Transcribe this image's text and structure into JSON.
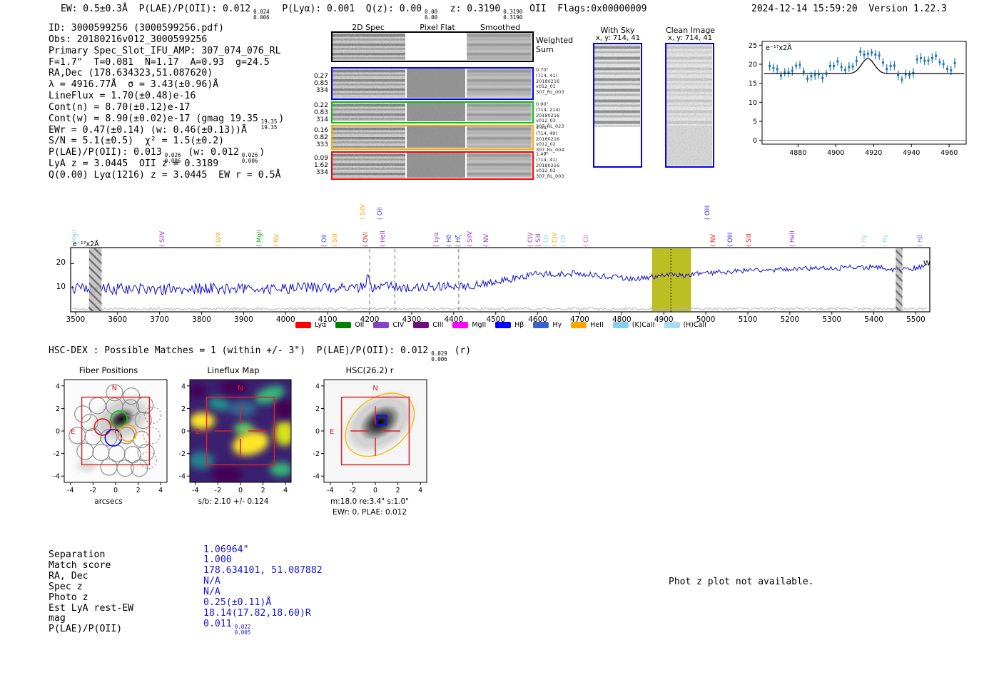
{
  "header": {
    "segments": [
      {
        "text": "EW: 0.5±0.3Å  "
      },
      {
        "text": "P(LAE)/P(OII): 0.012",
        "sup": "0.024",
        "sub": "0.006",
        "after": "  "
      },
      {
        "text": "P(Lyα): 0.001  "
      },
      {
        "text": "Q(z): 0.00",
        "sup": "0.00",
        "sub": "0.00",
        "after": "  "
      },
      {
        "text": "z: 0.3190",
        "sup": "0.3190",
        "sub": "0.3190",
        "after": " OII  "
      },
      {
        "text": "Flags:0x00000009"
      }
    ],
    "timestamp": "2024-12-14 15:59:20",
    "version": "Version 1.22.3"
  },
  "info_block": {
    "lines": [
      [
        {
          "text": "ID: 3000599256 (3000599256.pdf)"
        }
      ],
      [
        {
          "text": "Obs: 20180216v012_3000599256"
        }
      ],
      [
        {
          "text": "Primary Spec_Slot_IFU_AMP: 307_074_076_RL"
        }
      ],
      [
        {
          "text": "F=1.7\"  T=0.081  N=1.17  A=0.93  g=24.5"
        }
      ],
      [
        {
          "text": "RA,Dec (178.634323,51.087620)"
        }
      ],
      [
        {
          "text": "λ = 4916.77Å  σ = 3.43(±0.96)Å"
        }
      ],
      [
        {
          "text": "LineFlux = 1.70(±0.48)e-16"
        }
      ],
      [
        {
          "text": "Cont(n) = 8.70(±0.12)e-17"
        }
      ],
      [
        {
          "text": "Cont(w) = 8.90(±0.02)e-17 (gmag 19.35",
          "sup": "19.35",
          "sub": "19.35",
          "after": ")"
        }
      ],
      [
        {
          "text": "EWr = 0.47(±0.14) (w: 0.46(±0.13))Å"
        }
      ],
      [
        {
          "text": "S/N = 5.1(±0.5)  χ² = 1.5(±0.2)"
        }
      ],
      [
        {
          "text": "P(LAE)/P(OII): 0.013",
          "sup": "0.026",
          "sub": "0.006",
          "after": " (w: 0.012"
        },
        {
          "text": "",
          "sup": "0.026",
          "sub": "0.006",
          "after": ")"
        }
      ],
      [
        {
          "text": "LyA z = 3.0445  OII z = 0.3189"
        }
      ],
      [
        {
          "text": "Q(0.00) Lyα(1216) z = 3.0445  EW r = 0.5Å"
        }
      ]
    ]
  },
  "spec2d": {
    "col_headers": [
      "2D Spec",
      "Pixel Flat",
      "Smoothed"
    ],
    "weighted_sum_label": "Weighted\nSum",
    "rows": [
      {
        "border": "#000000",
        "kinds": [
          "noisy",
          "white",
          "smooth"
        ],
        "left": [],
        "right": []
      },
      {
        "border": "#0000ee",
        "kinds": [
          "noisy",
          "flat",
          "smooth"
        ],
        "left": [
          "0.27",
          "0.85",
          "334"
        ],
        "right": [
          "0.70\"",
          "(714, 41)",
          "20180216",
          "v012_01",
          "307_RL_003"
        ]
      },
      {
        "border": "#00c400",
        "kinds": [
          "noisy",
          "flat",
          "smooth"
        ],
        "left": [
          "0.22",
          "0.83",
          "314"
        ],
        "right": [
          "0.90\"",
          "(714, 214)",
          "20180216",
          "v012_03",
          "307_RL_023"
        ]
      },
      {
        "border": "#ffa500",
        "kinds": [
          "noisy",
          "flat",
          "smooth"
        ],
        "left": [
          "0.16",
          "0.82",
          "333"
        ],
        "right": [
          "1.04\"",
          "(714, 49)",
          "20180216",
          "v012_02",
          "307_RL_004"
        ]
      },
      {
        "border": "#ff0000",
        "kinds": [
          "noisy",
          "flat",
          "smooth"
        ],
        "left": [
          "0.09",
          "1.62",
          "334"
        ],
        "right": [
          "1.49\"",
          "(714, 41)",
          "20180216",
          "v012_02",
          "307_RL_003"
        ]
      }
    ]
  },
  "cutout_panels": {
    "with_sky": {
      "title": "With Sky",
      "subtitle": "x, y: 714, 41"
    },
    "clean_image": {
      "title": "Clean Image",
      "subtitle": "x, y: 714, 41"
    }
  },
  "chart_data": [
    {
      "id": "line_fit",
      "type": "scatter",
      "inline_label": "e⁻¹⁷x2Å",
      "xlim": [
        4861,
        4969
      ],
      "ylim": [
        -1,
        26
      ],
      "xticks": [
        4880,
        4900,
        4920,
        4940,
        4960
      ],
      "yticks": [
        0,
        5,
        10,
        15,
        20,
        25
      ],
      "continuum": 17.5,
      "gaussian": {
        "center": 4917,
        "sigma": 3.4,
        "amplitude": 4.0
      },
      "point_color": "#1f77b4",
      "fit_color": "#1a1a1a",
      "point_step": 2,
      "noise": 0.7,
      "err": 0.95,
      "seed": 11,
      "point_anchors": [
        [
          4865,
          19.5
        ],
        [
          4871,
          17.6
        ],
        [
          4876,
          17.9
        ],
        [
          4881,
          20.3
        ],
        [
          4885,
          16.1
        ],
        [
          4889,
          17.3
        ],
        [
          4893,
          16.6
        ],
        [
          4897,
          19.2
        ],
        [
          4901,
          20.4
        ],
        [
          4905,
          18.0
        ],
        [
          4909,
          19.6
        ],
        [
          4913,
          23.3
        ],
        [
          4917,
          22.4
        ],
        [
          4920,
          23.1
        ],
        [
          4923,
          21.6
        ],
        [
          4927,
          19.4
        ],
        [
          4931,
          19.9
        ],
        [
          4934,
          16.0
        ],
        [
          4938,
          17.6
        ],
        [
          4941,
          17.9
        ],
        [
          4944,
          22.2
        ],
        [
          4947,
          20.8
        ],
        [
          4950,
          21.4
        ],
        [
          4952,
          23.2
        ],
        [
          4955,
          21.1
        ],
        [
          4958,
          19.0
        ],
        [
          4961,
          18.3
        ],
        [
          4963,
          19.8
        ]
      ]
    },
    {
      "id": "full_spectrum",
      "type": "line",
      "inline_label": "e⁻¹⁷x2Å",
      "edge_label": "W",
      "xlim": [
        3490,
        5528
      ],
      "ylim": [
        0,
        26
      ],
      "xticks": [
        3500,
        3600,
        3700,
        3800,
        3900,
        4000,
        4100,
        4200,
        4300,
        4400,
        4500,
        4600,
        4700,
        4800,
        4900,
        5000,
        5100,
        5200,
        5300,
        5400,
        5500
      ],
      "yticks": [
        10,
        20
      ],
      "line_color": "#1010d0",
      "seed": 5,
      "step": 3,
      "noise_profile": [
        [
          3490,
          2.5
        ],
        [
          4260,
          2.2
        ],
        [
          4470,
          1.5
        ],
        [
          5050,
          1.1
        ]
      ],
      "anchors": [
        [
          3490,
          9.8
        ],
        [
          3560,
          9.3
        ],
        [
          3650,
          9.6
        ],
        [
          3750,
          9.2
        ],
        [
          3850,
          9.8
        ],
        [
          3950,
          9.6
        ],
        [
          4050,
          10.0
        ],
        [
          4120,
          10.2
        ],
        [
          4190,
          10.3
        ],
        [
          4196,
          16.8
        ],
        [
          4202,
          10.2
        ],
        [
          4280,
          10.2
        ],
        [
          4360,
          10.6
        ],
        [
          4430,
          10.8
        ],
        [
          4470,
          11.5
        ],
        [
          4520,
          13.0
        ],
        [
          4570,
          14.8
        ],
        [
          4620,
          15.8
        ],
        [
          4680,
          15.9
        ],
        [
          4740,
          15.2
        ],
        [
          4800,
          14.2
        ],
        [
          4855,
          13.6
        ],
        [
          4880,
          14.6
        ],
        [
          4917,
          15.8
        ],
        [
          4945,
          15.0
        ],
        [
          4970,
          15.6
        ],
        [
          5010,
          16.2
        ],
        [
          5060,
          16.6
        ],
        [
          5110,
          17.2
        ],
        [
          5170,
          17.6
        ],
        [
          5230,
          18.0
        ],
        [
          5290,
          17.9
        ],
        [
          5350,
          18.3
        ],
        [
          5410,
          18.6
        ],
        [
          5455,
          17.2
        ],
        [
          5480,
          17.6
        ],
        [
          5528,
          18.8
        ]
      ],
      "hatch_bands": [
        [
          3532,
          3562
        ],
        [
          5452,
          5468
        ]
      ],
      "highlight_band": {
        "x0": 4872,
        "x1": 4965,
        "color": "#b9b918"
      },
      "dashed_lines": [
        4200,
        4260,
        4412
      ],
      "dotted_line": 4917,
      "legend": [
        {
          "label": "Lyα",
          "color": "#ff0000"
        },
        {
          "label": "OII",
          "color": "#008000"
        },
        {
          "label": "CIV",
          "color": "#8543c6"
        },
        {
          "label": "CIII",
          "color": "#6e0d82"
        },
        {
          "label": "MgII",
          "color": "#ff00ff"
        },
        {
          "label": "Hβ",
          "color": "#0000ff"
        },
        {
          "label": "Hγ",
          "color": "#3c63c8"
        },
        {
          "label": "HeII",
          "color": "#ffa500"
        },
        {
          "label": "(K)CaII",
          "color": "#87ceeb"
        },
        {
          "label": "(H)CaII",
          "color": "#a9dcf2"
        }
      ],
      "line_labels": [
        {
          "wl": 3497,
          "text": "MgII",
          "color": "#8fd4ef",
          "tall": false
        },
        {
          "wl": 3705,
          "text": "SiIV",
          "color": "#9932cc",
          "tall": false
        },
        {
          "wl": 3838,
          "text": "Lyα",
          "color": "#ffa500",
          "tall": false
        },
        {
          "wl": 3936,
          "text": "MgII",
          "color": "#22aa22",
          "tall": false
        },
        {
          "wl": 3977,
          "text": "NV",
          "color": "#ffa500",
          "tall": false
        },
        {
          "wl": 4092,
          "text": "OII",
          "color": "#4747e8",
          "tall": false
        },
        {
          "wl": 4116,
          "text": "SiII",
          "color": "#ffa500",
          "tall": false
        },
        {
          "wl": 4183,
          "text": "SiIV",
          "color": "#ffa500",
          "tall": true
        },
        {
          "wl": 4189,
          "text": "OVI",
          "color": "#e82222",
          "tall": false
        },
        {
          "wl": 4224,
          "text": "OII",
          "color": "#4747e8",
          "tall": true
        },
        {
          "wl": 4231,
          "text": "HeII",
          "color": "#9932cc",
          "tall": false
        },
        {
          "wl": 4357,
          "text": "Lyα",
          "color": "#9932cc",
          "tall": false
        },
        {
          "wl": 4388,
          "text": "Hδ",
          "color": "#4747e8",
          "tall": false
        },
        {
          "wl": 4410,
          "text": "Hζ",
          "color": "#4747e8",
          "tall": false
        },
        {
          "wl": 4437,
          "text": "SiIV",
          "color": "#9932cc",
          "tall": false
        },
        {
          "wl": 4476,
          "text": "NV",
          "color": "#9932cc",
          "tall": false
        },
        {
          "wl": 4582,
          "text": "CIV",
          "color": "#9932cc",
          "tall": false
        },
        {
          "wl": 4601,
          "text": "SiII",
          "color": "#9932cc",
          "tall": false
        },
        {
          "wl": 4620,
          "text": "OII",
          "color": "#8fd4ef",
          "tall": false
        },
        {
          "wl": 4640,
          "text": "CIV",
          "color": "#ffa500",
          "tall": false
        },
        {
          "wl": 4660,
          "text": "OII",
          "color": "#8fd4ef",
          "tall": false
        },
        {
          "wl": 4715,
          "text": "CII",
          "color": "#ff44dd",
          "tall": false
        },
        {
          "wl": 5003,
          "text": "OIII",
          "color": "#2a2ae0",
          "tall": true
        },
        {
          "wl": 5016,
          "text": "NV",
          "color": "#e82222",
          "tall": false
        },
        {
          "wl": 5058,
          "text": "OIII",
          "color": "#2a2ae0",
          "tall": false
        },
        {
          "wl": 5102,
          "text": "SiII",
          "color": "#e82222",
          "tall": false
        },
        {
          "wl": 5205,
          "text": "HeII",
          "color": "#9932cc",
          "tall": false
        },
        {
          "wl": 5375,
          "text": "Hγ",
          "color": "#8fd4ef",
          "tall": false
        },
        {
          "wl": 5426,
          "text": "Hγ",
          "color": "#8fd4ef",
          "tall": false
        },
        {
          "wl": 5510,
          "text": "Hβ",
          "color": "#8888f5",
          "tall": false
        }
      ]
    }
  ],
  "match_header": {
    "segments": [
      {
        "text": "HSC-DEX : Possible Matches = 1 (within +/- 3\")  P(LAE)/P(OII): 0.012",
        "sup": "0.029",
        "sub": "0.006",
        "after": " (r)"
      }
    ]
  },
  "cutouts_row": {
    "fiber": {
      "title": "Fiber Positions",
      "xlabel": "arcsecs",
      "ticks": [
        -4,
        -2,
        0,
        2,
        4
      ],
      "compass_n": "N",
      "compass_e": "E"
    },
    "lineflux": {
      "title": "Lineflux Map",
      "caption": "s/b: 2.10 +/- 0.124",
      "ticks": [
        -4,
        -2,
        0,
        2,
        4
      ],
      "compass_n": "N",
      "compass_e": "E"
    },
    "hsc": {
      "title": "HSC(26.2) r",
      "caption1": "m:18.0  re:3.4\"  s:1.0\"",
      "caption2": "EWr: 0, PLAE: 0.012",
      "ticks": [
        -4,
        -2,
        0,
        2,
        4
      ],
      "compass_n": "N",
      "compass_e": "E"
    }
  },
  "match_table": {
    "value_color": "#1414d2",
    "rows": [
      {
        "label": "Separation",
        "value": "1.06964\""
      },
      {
        "label": "Match score",
        "value": "1.000"
      },
      {
        "label": "RA, Dec",
        "value": "178.634101, 51.087882"
      },
      {
        "label": "Spec z",
        "value": "N/A"
      },
      {
        "label": "Photo z",
        "value": "N/A"
      },
      {
        "label": "Est LyA rest-EW",
        "value": "0.25(±0.11)Å"
      },
      {
        "label": "mag",
        "value": "18.14(17.82,18.60)R"
      },
      {
        "label": "P(LAE)/P(OII)",
        "value": "0.011",
        "sup": "0.022",
        "sub": "0.005"
      }
    ]
  },
  "notice": "Phot z plot not available."
}
